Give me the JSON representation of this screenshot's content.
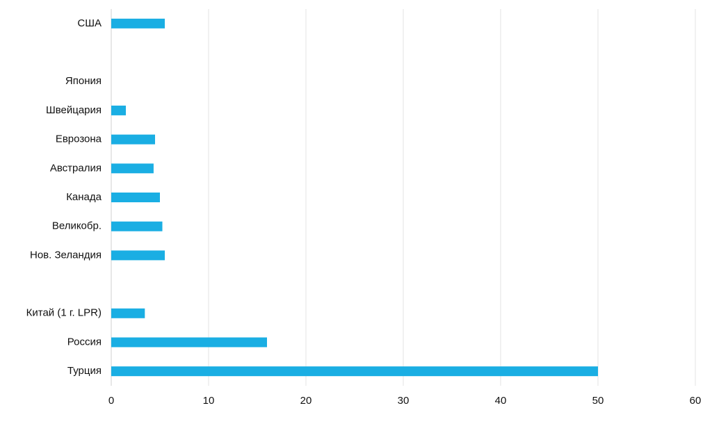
{
  "chart_data": {
    "type": "bar",
    "orientation": "horizontal",
    "categories": [
      "США",
      null,
      "Япония",
      "Швейцария",
      "Еврозона",
      "Австралия",
      "Канада",
      "Великобр.",
      "Нов. Зеландия",
      null,
      "Китай (1 г. LPR)",
      "Россия",
      "Турция"
    ],
    "values": [
      5.5,
      null,
      0,
      1.5,
      4.5,
      4.35,
      5.0,
      5.25,
      5.5,
      null,
      3.45,
      16,
      50
    ],
    "color": "#1aaee3",
    "xlim": [
      0,
      60
    ],
    "xticks": [
      0,
      10,
      20,
      30,
      40,
      50,
      60
    ],
    "grid": true
  }
}
